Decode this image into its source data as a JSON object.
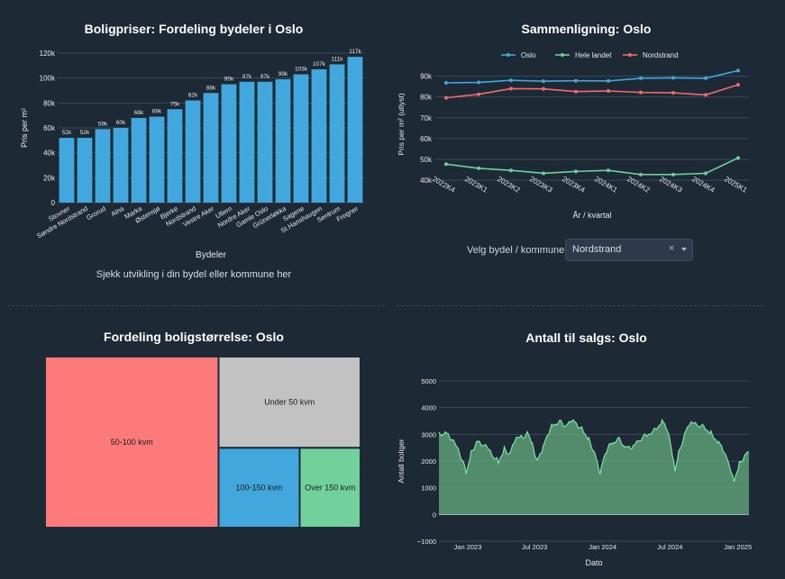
{
  "chart_data": [
    {
      "type": "bar",
      "title": "Boligpriser: Fordeling bydeler i Oslo",
      "xlabel": "Bydeler",
      "ylabel": "Pris per m²",
      "ylim": [
        0,
        120000
      ],
      "yticks": [
        0,
        20000,
        40000,
        60000,
        80000,
        100000,
        120000
      ],
      "ytick_labels": [
        "0",
        "20k",
        "40k",
        "60k",
        "80k",
        "100k",
        "120k"
      ],
      "categories": [
        "Stovner",
        "Søndre Nordstrand",
        "Grorud",
        "Alna",
        "Marka",
        "Østensjø",
        "Bjerke",
        "Nordstrand",
        "Vestre Aker",
        "Ullern",
        "Nordre Aker",
        "Gamle Oslo",
        "Grünerløkka",
        "Sagene",
        "St.Hanshaugen",
        "Sentrum",
        "Frogner"
      ],
      "values": [
        52000,
        52000,
        59000,
        60000,
        68000,
        69000,
        75000,
        82000,
        88000,
        95000,
        97000,
        97000,
        99000,
        103000,
        107000,
        111000,
        117000
      ],
      "value_labels": [
        "52k",
        "52k",
        "59k",
        "60k",
        "68k",
        "69k",
        "75k",
        "82k",
        "88k",
        "95k",
        "97k",
        "97k",
        "99k",
        "103k",
        "107k",
        "111k",
        "117k"
      ],
      "color": "#41a7dc",
      "grid": true
    },
    {
      "type": "line",
      "title": "Sammenligning: Oslo",
      "xlabel": "År / kvartal",
      "ylabel": "Pris per m² (utlyst)",
      "ylim": [
        37000,
        92000
      ],
      "yticks": [
        40000,
        50000,
        60000,
        70000,
        80000,
        90000
      ],
      "ytick_labels": [
        "40k",
        "50k",
        "60k",
        "70k",
        "80k",
        "90k"
      ],
      "x": [
        "2022K4",
        "2023K1",
        "2023K2",
        "2023K3",
        "2023K4",
        "2024K1",
        "2024K2",
        "2024K3",
        "2024K4",
        "2025K1"
      ],
      "legend": "top",
      "grid": true,
      "series": [
        {
          "name": "Oslo",
          "color": "#41a7dc",
          "values": [
            86800,
            87000,
            88000,
            87600,
            87800,
            87700,
            89000,
            89200,
            89000,
            92700
          ]
        },
        {
          "name": "Hele landet",
          "color": "#6dd09b",
          "values": [
            47700,
            45700,
            44700,
            43300,
            44200,
            44700,
            42700,
            42700,
            43300,
            50700
          ]
        },
        {
          "name": "Nordstrand",
          "color": "#f26a6a",
          "values": [
            79600,
            81300,
            84000,
            83900,
            82600,
            82900,
            82200,
            82000,
            81000,
            85900
          ]
        }
      ]
    },
    {
      "type": "treemap",
      "title": "Fordeling boligstørrelse: Oslo",
      "categories": [
        "50-100 kvm",
        "Under 50 kvm",
        "100-150 kvm",
        "Over 150 kvm"
      ],
      "values": [
        55,
        24,
        12,
        9
      ],
      "colors": [
        "#fd7a7a",
        "#c2c2c2",
        "#41a7dc",
        "#71d19b"
      ]
    },
    {
      "type": "area",
      "title": "Antall til salgs: Oslo",
      "xlabel": "Dato",
      "ylabel": "Antall boliger",
      "ylim": [
        -1000,
        5000
      ],
      "yticks": [
        -1000,
        0,
        1000,
        2000,
        3000,
        4000,
        5000
      ],
      "ytick_labels": [
        "−1000",
        "0",
        "1000",
        "2000",
        "3000",
        "4000",
        "5000"
      ],
      "xticks": [
        "Jan 2023",
        "Jul 2023",
        "Jan 2024",
        "Jul 2024",
        "Jan 2025"
      ],
      "x_start": "2022-10-15",
      "x_end": "2025-01-31",
      "color": "#5fa57a",
      "line_color": "#7ee0a5",
      "grid": true,
      "points": [
        [
          "2022-10-15",
          3000
        ],
        [
          "2022-11-01",
          3050
        ],
        [
          "2022-11-20",
          2800
        ],
        [
          "2022-12-10",
          2300
        ],
        [
          "2022-12-28",
          1600
        ],
        [
          "2023-01-10",
          2300
        ],
        [
          "2023-01-25",
          2700
        ],
        [
          "2023-02-15",
          2600
        ],
        [
          "2023-03-10",
          2200
        ],
        [
          "2023-03-25",
          2000
        ],
        [
          "2023-04-10",
          2450
        ],
        [
          "2023-04-25",
          2250
        ],
        [
          "2023-05-10",
          2800
        ],
        [
          "2023-05-30",
          2900
        ],
        [
          "2023-06-15",
          3050
        ],
        [
          "2023-06-25",
          2600
        ],
        [
          "2023-07-08",
          2000
        ],
        [
          "2023-07-20",
          2300
        ],
        [
          "2023-08-05",
          3000
        ],
        [
          "2023-08-20",
          3400
        ],
        [
          "2023-09-10",
          3450
        ],
        [
          "2023-09-25",
          3300
        ],
        [
          "2023-10-10",
          3500
        ],
        [
          "2023-10-25",
          3350
        ],
        [
          "2023-11-10",
          3150
        ],
        [
          "2023-11-25",
          2800
        ],
        [
          "2023-12-10",
          2300
        ],
        [
          "2023-12-25",
          1500
        ],
        [
          "2024-01-08",
          2300
        ],
        [
          "2024-01-25",
          2700
        ],
        [
          "2024-02-15",
          2800
        ],
        [
          "2024-03-05",
          2500
        ],
        [
          "2024-03-20",
          2450
        ],
        [
          "2024-04-10",
          2800
        ],
        [
          "2024-04-30",
          3000
        ],
        [
          "2024-05-20",
          3150
        ],
        [
          "2024-06-10",
          3500
        ],
        [
          "2024-06-25",
          3100
        ],
        [
          "2024-07-05",
          2500
        ],
        [
          "2024-07-15",
          1700
        ],
        [
          "2024-07-25",
          2300
        ],
        [
          "2024-08-10",
          3000
        ],
        [
          "2024-08-25",
          3400
        ],
        [
          "2024-09-15",
          3350
        ],
        [
          "2024-10-05",
          3250
        ],
        [
          "2024-10-20",
          3050
        ],
        [
          "2024-11-10",
          2700
        ],
        [
          "2024-11-25",
          2300
        ],
        [
          "2024-12-10",
          1800
        ],
        [
          "2024-12-22",
          1300
        ],
        [
          "2025-01-05",
          1900
        ],
        [
          "2025-01-20",
          2200
        ],
        [
          "2025-01-31",
          2300
        ]
      ]
    }
  ],
  "selector": {
    "label": "Velg bydel / kommune:",
    "value": "Nordstrand",
    "clear_glyph": "×"
  },
  "cta_text": "Sjekk utvikling i din bydel eller kommune her"
}
